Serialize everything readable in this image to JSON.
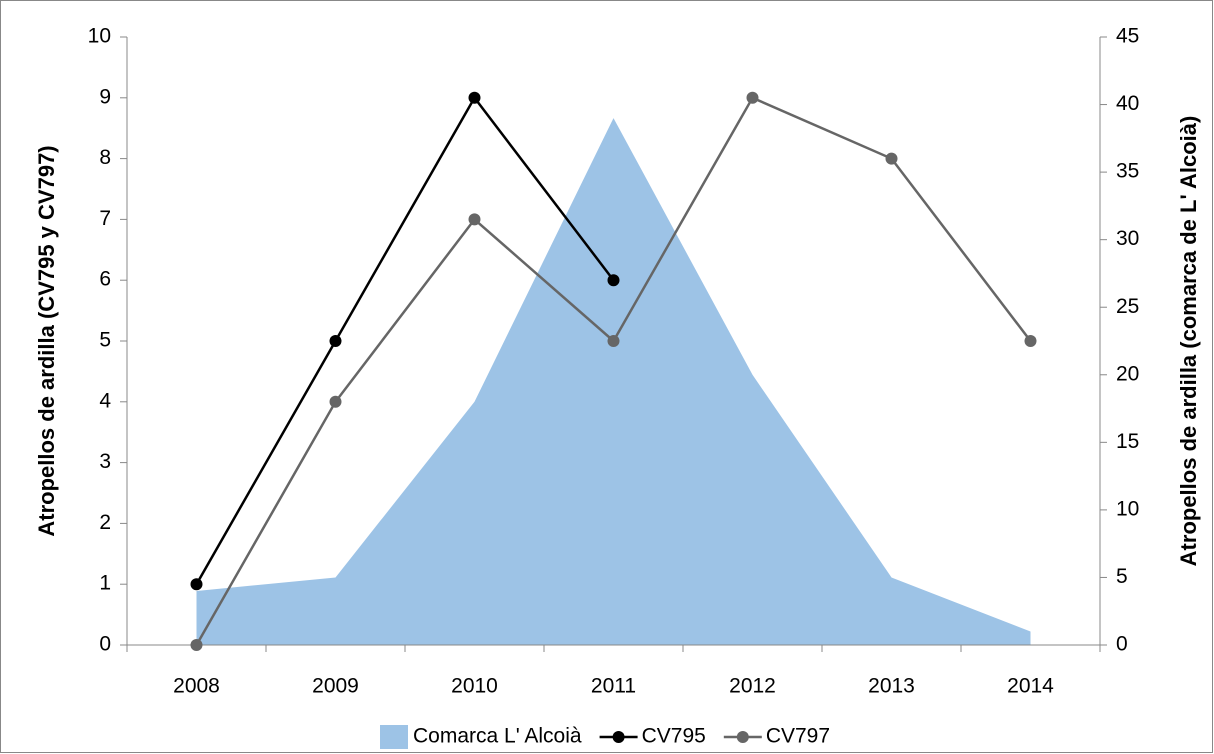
{
  "chart_data": {
    "type": "line",
    "categories": [
      "2008",
      "2009",
      "2010",
      "2011",
      "2012",
      "2013",
      "2014"
    ],
    "series": [
      {
        "name": "Comarca L' Alcoià",
        "type": "area",
        "axis": "y2",
        "color": "#9dc3e6",
        "values": [
          4,
          5,
          18,
          39,
          20,
          5,
          1
        ]
      },
      {
        "name": "CV795",
        "color": "#000000",
        "values": [
          1,
          5,
          9,
          6,
          null,
          null,
          null
        ]
      },
      {
        "name": "CV797",
        "color": "#666666",
        "values": [
          0,
          4,
          7,
          5,
          9,
          8,
          5
        ]
      }
    ],
    "ylabel": "Atropellos de ardilla (CV795 y CV797)",
    "y2label": "Atropellos de ardilla (comarca de L' Alcoià)",
    "ylim": [
      0,
      10
    ],
    "yticks": [
      0,
      1,
      2,
      3,
      4,
      5,
      6,
      7,
      8,
      9,
      10
    ],
    "y2lim": [
      0,
      45
    ],
    "y2ticks": [
      0,
      5,
      10,
      15,
      20,
      25,
      30,
      35,
      40,
      45
    ],
    "legend": "bottom"
  }
}
